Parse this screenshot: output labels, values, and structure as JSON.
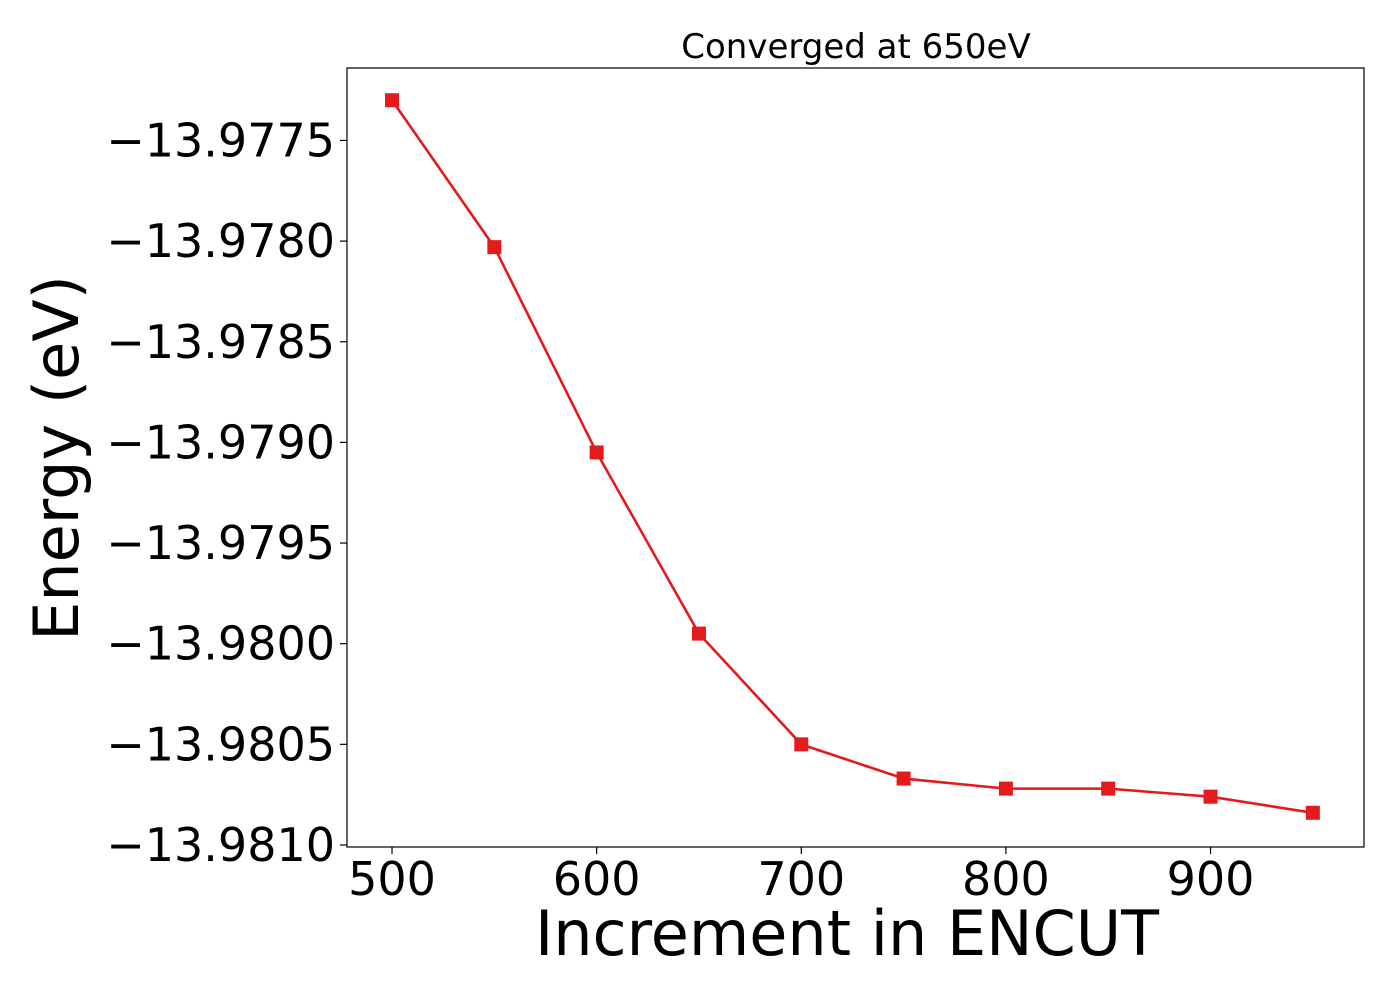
{
  "chart_data": {
    "type": "line",
    "title": "Converged at 650eV",
    "xlabel": "Increment in ENCUT",
    "ylabel": "Energy (eV)",
    "xlim": [
      478,
      975
    ],
    "ylim": [
      -13.98101,
      -13.97714
    ],
    "x_ticks": [
      500,
      600,
      700,
      800,
      900
    ],
    "x_tick_labels": [
      "500",
      "600",
      "700",
      "800",
      "900"
    ],
    "y_ticks": [
      -13.9775,
      -13.978,
      -13.9785,
      -13.979,
      -13.9795,
      -13.98,
      -13.9805,
      -13.981
    ],
    "y_tick_labels": [
      "−13.9775",
      "−13.9780",
      "−13.9785",
      "−13.9790",
      "−13.9795",
      "−13.9800",
      "−13.9805",
      "−13.9810"
    ],
    "grid": false,
    "legend": "none",
    "series": [
      {
        "color": "#e41a1c",
        "marker": "square",
        "x": [
          500,
          550,
          600,
          650,
          700,
          750,
          800,
          850,
          900,
          950
        ],
        "y": [
          -13.9773,
          -13.97803,
          -13.97905,
          -13.97995,
          -13.9805,
          -13.98067,
          -13.98072,
          -13.98072,
          -13.98076,
          -13.98084
        ]
      }
    ]
  }
}
